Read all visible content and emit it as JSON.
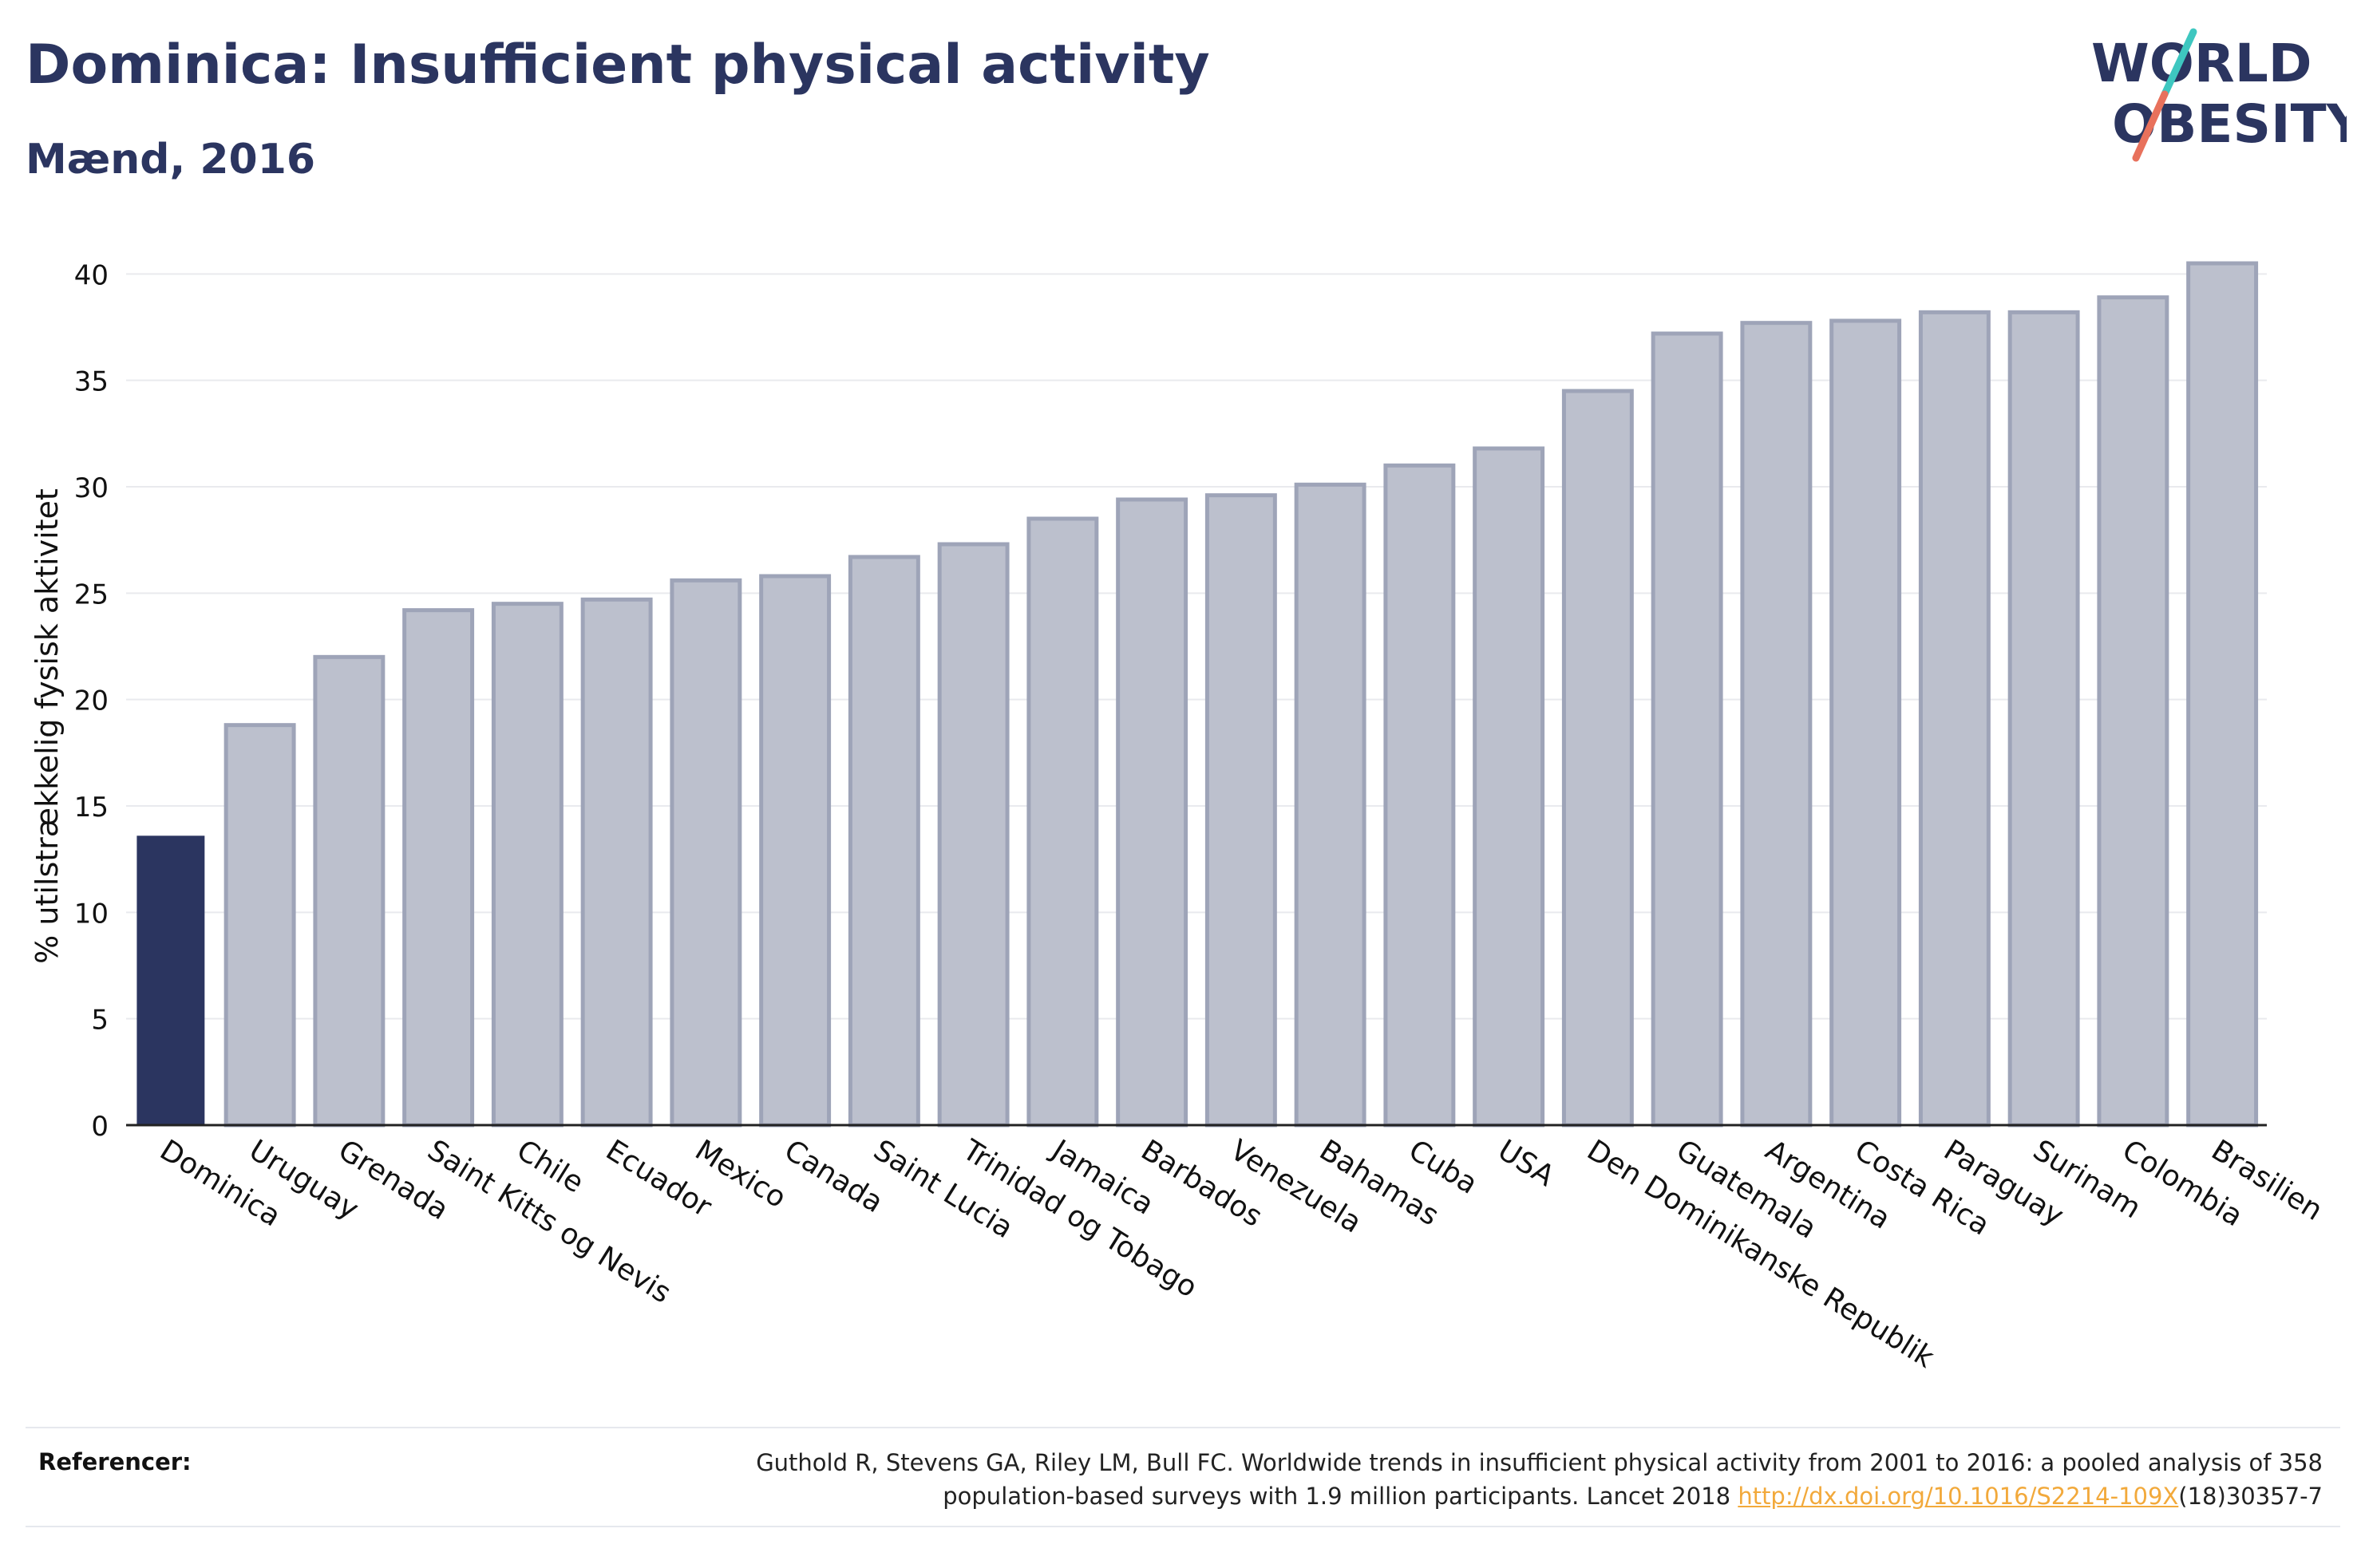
{
  "header": {
    "title": "Dominica: Insufficient physical activity",
    "subtitle": "Mænd, 2016"
  },
  "logo": {
    "line1": "WORLD",
    "line2": "OBESITY",
    "text_color": "#2b3560",
    "slash_color_top": "#3ec7c0",
    "slash_color_bottom": "#e8715c"
  },
  "chart_data": {
    "type": "bar",
    "ylabel": "% utilstrækkelig fysisk aktivitet",
    "ylim": [
      0,
      40.5
    ],
    "yticks": [
      0,
      5,
      10,
      15,
      20,
      25,
      30,
      35,
      40
    ],
    "grid": true,
    "highlight_color": "#2b3560",
    "bar_color": "#bcc0cd",
    "bar_border_color": "#9ea4b8",
    "highlight_index": 0,
    "categories": [
      "Dominica",
      "Uruguay",
      "Grenada",
      "Saint Kitts og Nevis",
      "Chile",
      "Ecuador",
      "Mexico",
      "Canada",
      "Saint Lucia",
      "Trinidad og Tobago",
      "Jamaica",
      "Barbados",
      "Venezuela",
      "Bahamas",
      "Cuba",
      "USA",
      "Den Dominikanske Republik",
      "Guatemala",
      "Argentina",
      "Costa Rica",
      "Paraguay",
      "Surinam",
      "Colombia",
      "Brasilien"
    ],
    "values": [
      13.6,
      18.8,
      22.0,
      24.2,
      24.5,
      24.7,
      25.6,
      25.8,
      26.7,
      27.3,
      28.5,
      29.4,
      29.6,
      30.1,
      31.0,
      31.8,
      34.5,
      37.2,
      37.7,
      37.8,
      38.2,
      38.2,
      38.9,
      40.5
    ]
  },
  "footer": {
    "label": "Referencer:",
    "citation_part1": "Guthold R, Stevens GA, Riley LM, Bull FC. Worldwide trends in insufficient physical activity from 2001 to 2016: a pooled analysis of 358",
    "citation_part2": "population-based surveys with 1.9 million participants. Lancet 2018 ",
    "link_text": "http://dx.doi.org/10.1016/S2214-109X",
    "citation_part3": "(18)30357-7"
  }
}
